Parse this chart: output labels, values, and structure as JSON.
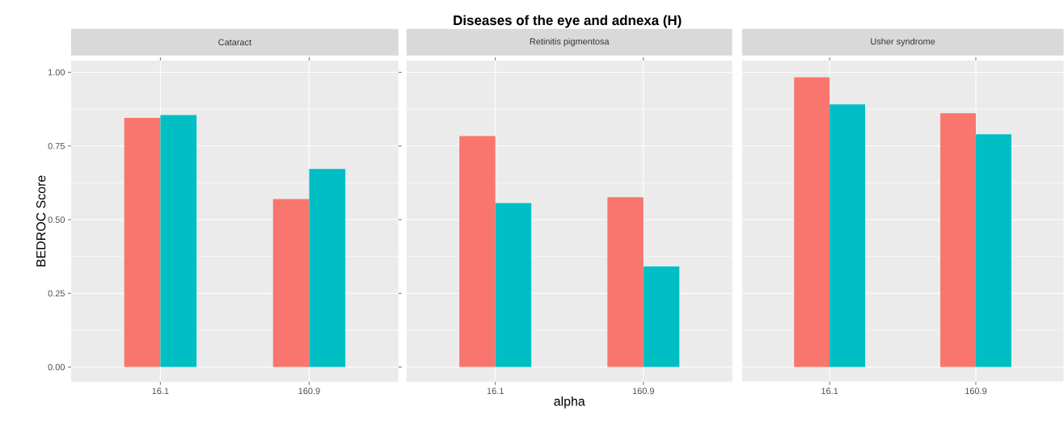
{
  "chart_data": [
    {
      "type": "bar",
      "subtitle": "Cataract",
      "ylabel": "BEDROC Score",
      "categories": [
        "16.1",
        "160.9"
      ],
      "series": [
        {
          "color": "#f8766d",
          "values": [
            0.845,
            0.57
          ]
        },
        {
          "color": "#00bfc4",
          "values": [
            0.855,
            0.672
          ]
        }
      ],
      "ylim": [
        -0.05,
        1.04
      ],
      "yticks": [
        {
          "value": 0,
          "label": "0.00"
        },
        {
          "value": 0.25,
          "label": "0.25"
        },
        {
          "value": 0.5,
          "label": "0.50"
        },
        {
          "value": 0.75,
          "label": "0.75"
        },
        {
          "value": 1,
          "label": "1.00"
        }
      ],
      "grid": true
    },
    {
      "type": "bar",
      "title": "Diseases of the eye and adnexa (H)",
      "subtitle": "Retinitis pigmentosa",
      "xlabel": "alpha",
      "categories": [
        "16.1",
        "160.9"
      ],
      "series": [
        {
          "color": "#f8766d",
          "values": [
            0.784,
            0.576
          ]
        },
        {
          "color": "#00bfc4",
          "values": [
            0.556,
            0.341
          ]
        }
      ],
      "ylim": [
        -0.05,
        1.04
      ],
      "yticks": [
        {
          "value": 0,
          "label": null
        },
        {
          "value": 0.25,
          "label": null
        },
        {
          "value": 0.5,
          "label": null
        },
        {
          "value": 0.75,
          "label": null
        },
        {
          "value": 1,
          "label": null
        }
      ],
      "grid": true,
      "tick_labels": "x"
    },
    {
      "type": "bar",
      "subtitle": "Usher syndrome",
      "categories": [
        "16.1",
        "160.9"
      ],
      "series": [
        {
          "color": "#f8766d",
          "values": [
            0.983,
            0.861
          ]
        },
        {
          "color": "#00bfc4",
          "values": [
            0.891,
            0.79
          ]
        }
      ],
      "ylim": [
        -0.05,
        1.04
      ],
      "yticks": [
        {
          "value": 0,
          "label": null
        },
        {
          "value": 0.25,
          "label": null
        },
        {
          "value": 0.5,
          "label": null
        },
        {
          "value": 0.75,
          "label": null
        },
        {
          "value": 1,
          "label": null
        }
      ],
      "grid": true,
      "tick_labels": "x"
    }
  ]
}
